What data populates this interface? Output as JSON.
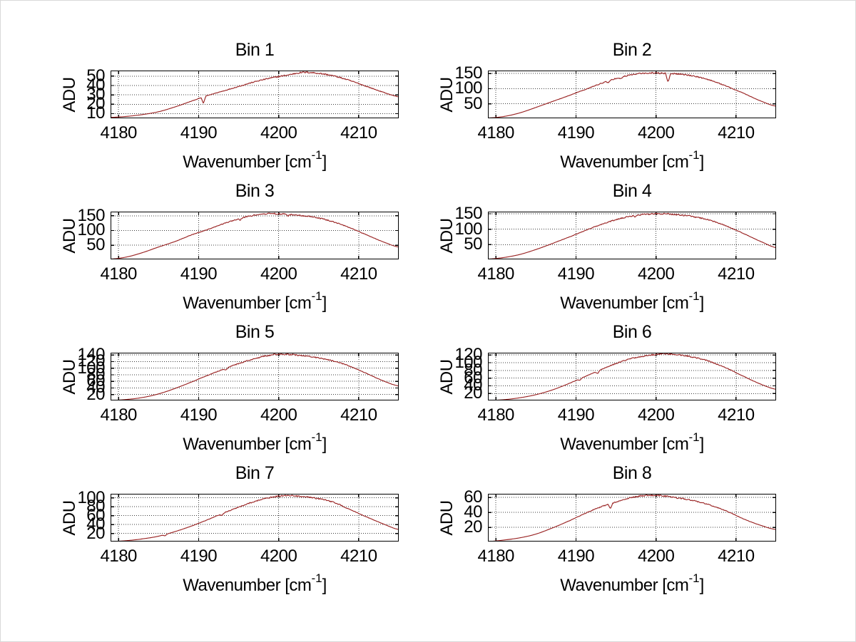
{
  "figure": {
    "background": "#ffffff",
    "line_color": "#9a2424",
    "grid_color": "#3c3c3c",
    "axis_color": "#000000",
    "text_color": "#000000",
    "border_color": "#d9d9d9"
  },
  "chart_data": [
    {
      "type": "line",
      "title": "Bin 1",
      "ylabel": "ADU",
      "xlabel": "Wavenumber [cm^-1]",
      "xlabel_parts": {
        "base": "Wavenumber [cm",
        "sup": "-1",
        "close": "]"
      },
      "x": [
        4179,
        4181,
        4183,
        4185,
        4187,
        4189,
        4191,
        4193,
        4195,
        4197,
        4199,
        4201,
        4203,
        4205,
        4207,
        4209,
        4211,
        4213,
        4215
      ],
      "values": [
        6,
        7,
        9,
        12,
        17,
        23,
        29,
        34,
        39,
        44,
        48,
        51,
        54,
        53,
        50,
        45,
        39,
        33,
        28
      ],
      "xlim": [
        4179,
        4215
      ],
      "ylim": [
        5,
        56
      ],
      "xticks": [
        4180,
        4190,
        4200,
        4210
      ],
      "yticks": [
        10,
        20,
        30,
        40,
        50
      ],
      "grid": true,
      "legend": null,
      "dips": [
        {
          "x": 4190.6,
          "depth": 7
        }
      ]
    },
    {
      "type": "line",
      "title": "Bin 2",
      "ylabel": "ADU",
      "xlabel": "Wavenumber [cm^-1]",
      "xlabel_parts": {
        "base": "Wavenumber [cm",
        "sup": "-1",
        "close": "]"
      },
      "x": [
        4179,
        4181,
        4183,
        4185,
        4187,
        4189,
        4191,
        4193,
        4195,
        4197,
        4199,
        4201,
        4203,
        4205,
        4207,
        4209,
        4211,
        4213,
        4215
      ],
      "values": [
        3,
        8,
        20,
        38,
        57,
        76,
        96,
        116,
        134,
        146,
        152,
        151,
        148,
        140,
        126,
        106,
        84,
        60,
        42
      ],
      "xlim": [
        4179,
        4215
      ],
      "ylim": [
        2,
        160
      ],
      "xticks": [
        4180,
        4190,
        4200,
        4210
      ],
      "yticks": [
        50,
        100,
        150
      ],
      "grid": true,
      "legend": null,
      "dips": [
        {
          "x": 4201.5,
          "depth": 30
        },
        {
          "x": 4194.0,
          "depth": 6
        },
        {
          "x": 4195.6,
          "depth": 5
        }
      ]
    },
    {
      "type": "line",
      "title": "Bin 3",
      "ylabel": "ADU",
      "xlabel": "Wavenumber [cm^-1]",
      "xlabel_parts": {
        "base": "Wavenumber [cm",
        "sup": "-1",
        "close": "]"
      },
      "x": [
        4179,
        4181,
        4183,
        4185,
        4187,
        4189,
        4191,
        4193,
        4195,
        4197,
        4199,
        4201,
        4203,
        4205,
        4207,
        4209,
        4211,
        4213,
        4215
      ],
      "values": [
        3,
        10,
        25,
        44,
        62,
        84,
        102,
        122,
        140,
        152,
        157,
        155,
        150,
        142,
        128,
        108,
        85,
        62,
        44
      ],
      "xlim": [
        4179,
        4215
      ],
      "ylim": [
        2,
        164
      ],
      "xticks": [
        4180,
        4190,
        4200,
        4210
      ],
      "yticks": [
        50,
        100,
        150
      ],
      "grid": true,
      "legend": null,
      "dips": [
        {
          "x": 4195.2,
          "depth": 6
        },
        {
          "x": 4201.2,
          "depth": 5
        }
      ]
    },
    {
      "type": "line",
      "title": "Bin 4",
      "ylabel": "ADU",
      "xlabel": "Wavenumber [cm^-1]",
      "xlabel_parts": {
        "base": "Wavenumber [cm",
        "sup": "-1",
        "close": "]"
      },
      "x": [
        4179,
        4181,
        4183,
        4185,
        4187,
        4189,
        4191,
        4193,
        4195,
        4197,
        4199,
        4201,
        4203,
        4205,
        4207,
        4209,
        4211,
        4213,
        4215
      ],
      "values": [
        3,
        8,
        18,
        34,
        53,
        73,
        94,
        114,
        131,
        143,
        149,
        150,
        146,
        139,
        127,
        108,
        85,
        61,
        40
      ],
      "xlim": [
        4179,
        4215
      ],
      "ylim": [
        2,
        157
      ],
      "xticks": [
        4180,
        4190,
        4200,
        4210
      ],
      "yticks": [
        50,
        100,
        150
      ],
      "grid": true,
      "legend": null,
      "dips": [
        {
          "x": 4197.4,
          "depth": 5
        }
      ]
    },
    {
      "type": "line",
      "title": "Bin 5",
      "ylabel": "ADU",
      "xlabel": "Wavenumber [cm^-1]",
      "xlabel_parts": {
        "base": "Wavenumber [cm",
        "sup": "-1",
        "close": "]"
      },
      "x": [
        4179,
        4181,
        4183,
        4185,
        4187,
        4189,
        4191,
        4193,
        4195,
        4197,
        4199,
        4201,
        4203,
        4205,
        4207,
        4209,
        4211,
        4213,
        4215
      ],
      "values": [
        2,
        5,
        11,
        22,
        38,
        57,
        77,
        96,
        114,
        129,
        140,
        142,
        138,
        131,
        121,
        105,
        84,
        62,
        46
      ],
      "xlim": [
        4179,
        4215
      ],
      "ylim": [
        2,
        147
      ],
      "xticks": [
        4180,
        4190,
        4200,
        4210
      ],
      "yticks": [
        20,
        40,
        60,
        80,
        100,
        120,
        140
      ],
      "grid": true,
      "legend": null,
      "dips": [
        {
          "x": 4193.4,
          "depth": 6
        }
      ]
    },
    {
      "type": "line",
      "title": "Bin 6",
      "ylabel": "ADU",
      "xlabel": "Wavenumber [cm^-1]",
      "xlabel_parts": {
        "base": "Wavenumber [cm",
        "sup": "-1",
        "close": "]"
      },
      "x": [
        4179,
        4181,
        4183,
        4185,
        4187,
        4189,
        4191,
        4193,
        4195,
        4197,
        4199,
        4201,
        4203,
        4205,
        4207,
        4209,
        4211,
        4213,
        4215
      ],
      "values": [
        2,
        4,
        9,
        17,
        29,
        45,
        63,
        81,
        98,
        111,
        119,
        123,
        120,
        113,
        101,
        84,
        64,
        45,
        31
      ],
      "xlim": [
        4179,
        4215
      ],
      "ylim": [
        2,
        126
      ],
      "xticks": [
        4180,
        4190,
        4200,
        4210
      ],
      "yticks": [
        20,
        40,
        60,
        80,
        100,
        120
      ],
      "grid": true,
      "legend": null,
      "dips": [
        {
          "x": 4192.7,
          "depth": 7
        },
        {
          "x": 4190.5,
          "depth": 4
        }
      ]
    },
    {
      "type": "line",
      "title": "Bin 7",
      "ylabel": "ADU",
      "xlabel": "Wavenumber [cm^-1]",
      "xlabel_parts": {
        "base": "Wavenumber [cm",
        "sup": "-1",
        "close": "]"
      },
      "x": [
        4179,
        4181,
        4183,
        4185,
        4187,
        4189,
        4191,
        4193,
        4195,
        4197,
        4199,
        4201,
        4203,
        4205,
        4207,
        4209,
        4211,
        4213,
        4215
      ],
      "values": [
        2,
        4,
        8,
        14,
        24,
        36,
        50,
        65,
        79,
        92,
        101,
        105,
        103,
        98,
        89,
        73,
        57,
        42,
        29
      ],
      "xlim": [
        4179,
        4215
      ],
      "ylim": [
        2,
        109
      ],
      "xticks": [
        4180,
        4190,
        4200,
        4210
      ],
      "yticks": [
        20,
        40,
        60,
        80,
        100
      ],
      "grid": true,
      "legend": null,
      "dips": [
        {
          "x": 4192.9,
          "depth": 4
        },
        {
          "x": 4185.8,
          "depth": 3
        }
      ]
    },
    {
      "type": "line",
      "title": "Bin 8",
      "ylabel": "ADU",
      "xlabel": "Wavenumber [cm^-1]",
      "xlabel_parts": {
        "base": "Wavenumber [cm",
        "sup": "-1",
        "close": "]"
      },
      "x": [
        4179,
        4181,
        4183,
        4185,
        4187,
        4189,
        4191,
        4193,
        4195,
        4197,
        4199,
        4201,
        4203,
        4205,
        4207,
        4209,
        4211,
        4213,
        4215
      ],
      "values": [
        1,
        3,
        6,
        11,
        19,
        28,
        38,
        47,
        54,
        60,
        63,
        62,
        59,
        55,
        49,
        41,
        31,
        23,
        17
      ],
      "xlim": [
        4179,
        4215
      ],
      "ylim": [
        1,
        65
      ],
      "xticks": [
        4180,
        4190,
        4200,
        4210
      ],
      "yticks": [
        20,
        40,
        60
      ],
      "grid": true,
      "legend": null,
      "dips": [
        {
          "x": 4194.3,
          "depth": 7
        }
      ]
    }
  ]
}
